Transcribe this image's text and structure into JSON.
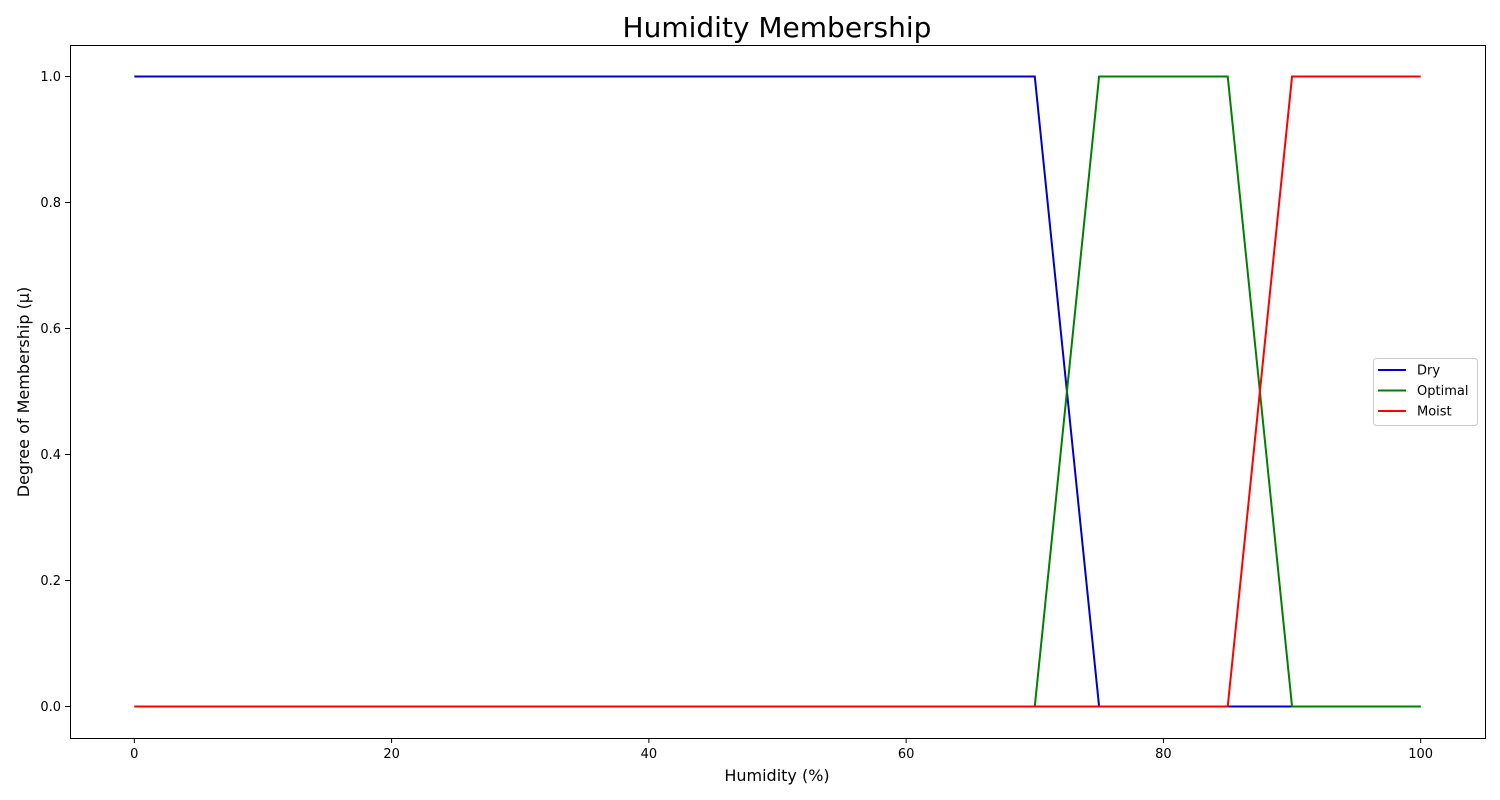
{
  "chart_data": {
    "type": "line",
    "title": "Humidity Membership",
    "xlabel": "Humidity (%)",
    "ylabel": "Degree of Membership (μ)",
    "xlim": [
      -5,
      105
    ],
    "ylim": [
      -0.05,
      1.05
    ],
    "x_ticks": [
      0,
      20,
      40,
      60,
      80,
      100
    ],
    "x_tick_labels": [
      "0",
      "20",
      "40",
      "60",
      "80",
      "100"
    ],
    "y_ticks": [
      0.0,
      0.2,
      0.4,
      0.6,
      0.8,
      1.0
    ],
    "y_tick_labels": [
      "0.0",
      "0.2",
      "0.4",
      "0.6",
      "0.8",
      "1.0"
    ],
    "grid": false,
    "legend_position": "center-right",
    "series": [
      {
        "name": "Dry",
        "color": "#0000cc",
        "x": [
          0,
          70,
          75,
          100
        ],
        "y": [
          1,
          1,
          0,
          0
        ]
      },
      {
        "name": "Optimal",
        "color": "#008000",
        "x": [
          0,
          70,
          75,
          85,
          90,
          100
        ],
        "y": [
          0,
          0,
          1,
          1,
          0,
          0
        ]
      },
      {
        "name": "Moist",
        "color": "#ff0000",
        "x": [
          0,
          85,
          90,
          100
        ],
        "y": [
          0,
          0,
          1,
          1
        ]
      }
    ]
  }
}
